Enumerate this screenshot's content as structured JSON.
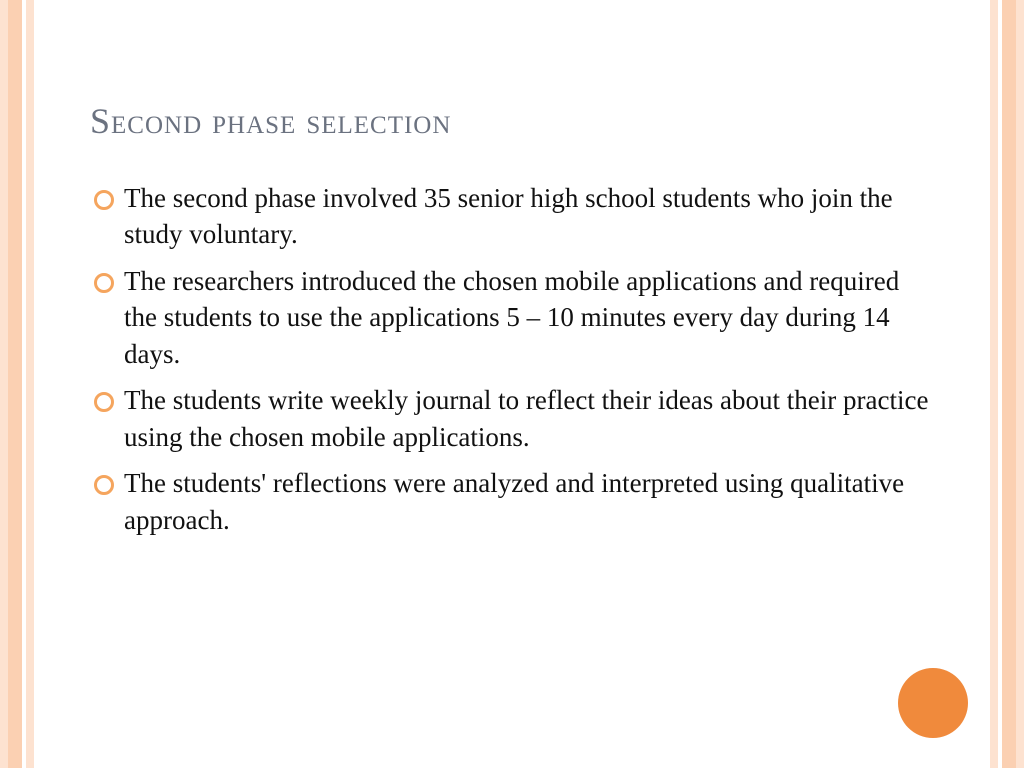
{
  "colors": {
    "stripe_light": "#fde2d0",
    "stripe_mid": "#fbd0b2",
    "title_color": "#6b7280",
    "body_text": "#111111",
    "bullet_ring": "#f5a55e",
    "accent_circle": "#f08a3c",
    "background": "#ffffff"
  },
  "typography": {
    "title_fontsize": 36,
    "body_fontsize": 27,
    "font_family": "Georgia"
  },
  "slide": {
    "title": "Second phase selection",
    "bullets": [
      "The second phase involved 35 senior high school students who join the study voluntary.",
      "The researchers introduced the chosen mobile applications and required the students to use the applications 5 – 10 minutes every day during 14 days.",
      "The students write weekly journal to reflect their ideas about their practice using the chosen mobile applications.",
      "The students' reflections were analyzed and interpreted using qualitative approach."
    ]
  }
}
